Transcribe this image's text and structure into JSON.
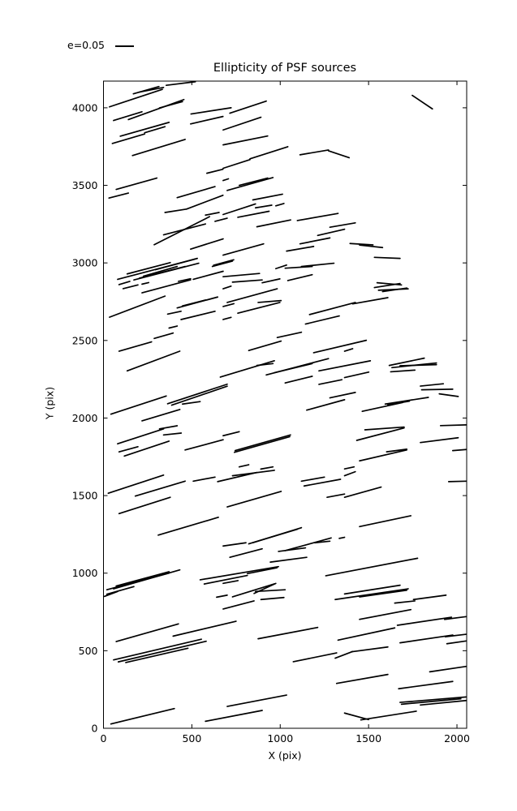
{
  "title": "Ellipticity of PSF sources",
  "legend": {
    "label": "e=0.05"
  },
  "axes": {
    "xlabel": "X (pix)",
    "ylabel": "Y (pix)"
  },
  "colors": {
    "line": "#000000",
    "frame": "#000000",
    "background": "#ffffff"
  },
  "chart_data": {
    "type": "scatter",
    "subtype": "ellipticity-whisker-segments",
    "title": "Ellipticity of PSF sources",
    "xlabel": "X (pix)",
    "ylabel": "Y (pix)",
    "xlim": [
      0,
      2055
    ],
    "ylim": [
      0,
      4172
    ],
    "xticks": [
      0,
      500,
      1000,
      1500,
      2000
    ],
    "yticks": [
      0,
      500,
      1000,
      1500,
      2000,
      2500,
      3000,
      3500,
      4000
    ],
    "grid": false,
    "legend": {
      "label": "e=0.05",
      "position": "above-axes-upper-left",
      "scale_units_per_e005": 100
    },
    "line_width": 1.7,
    "segments": [
      [
        34,
        4006,
        333,
        4119
      ],
      [
        169,
        4090,
        314,
        4137
      ],
      [
        203,
        4101,
        340,
        4131
      ],
      [
        355,
        4145,
        520,
        4168
      ],
      [
        57,
        3918,
        218,
        3974
      ],
      [
        141,
        3924,
        455,
        4053
      ],
      [
        95,
        3817,
        371,
        3906
      ],
      [
        233,
        3839,
        348,
        3878
      ],
      [
        317,
        3999,
        447,
        4040
      ],
      [
        495,
        3960,
        722,
        4000
      ],
      [
        50,
        3770,
        233,
        3831
      ],
      [
        164,
        3692,
        462,
        3796
      ],
      [
        493,
        3896,
        676,
        3944
      ],
      [
        72,
        3474,
        302,
        3547
      ],
      [
        31,
        3418,
        141,
        3450
      ],
      [
        417,
        3421,
        631,
        3492
      ],
      [
        470,
        3347,
        676,
        3436
      ],
      [
        585,
        3578,
        676,
        3604
      ],
      [
        715,
        3965,
        921,
        4043
      ],
      [
        677,
        3857,
        891,
        3939
      ],
      [
        677,
        3761,
        929,
        3818
      ],
      [
        677,
        3610,
        829,
        3666
      ],
      [
        829,
        3671,
        1043,
        3749
      ],
      [
        1112,
        3697,
        1273,
        3728
      ],
      [
        1273,
        3723,
        1390,
        3678
      ],
      [
        677,
        3531,
        707,
        3542
      ],
      [
        700,
        3467,
        959,
        3550
      ],
      [
        768,
        3500,
        929,
        3547
      ],
      [
        845,
        3406,
        1013,
        3443
      ],
      [
        677,
        3312,
        860,
        3380
      ],
      [
        860,
        3355,
        952,
        3372
      ],
      [
        975,
        3368,
        1021,
        3383
      ],
      [
        1747,
        4080,
        1861,
        3993
      ],
      [
        348,
        3325,
        470,
        3347
      ],
      [
        287,
        3117,
        600,
        3298
      ],
      [
        340,
        3181,
        577,
        3251
      ],
      [
        577,
        3308,
        654,
        3325
      ],
      [
        631,
        3268,
        700,
        3288
      ],
      [
        493,
        3089,
        677,
        3155
      ],
      [
        80,
        2894,
        516,
        3024
      ],
      [
        172,
        2890,
        539,
        2998
      ],
      [
        226,
        2914,
        417,
        2977
      ],
      [
        203,
        2902,
        462,
        2977
      ],
      [
        134,
        2929,
        378,
        3002
      ],
      [
        294,
        2956,
        531,
        3029
      ],
      [
        616,
        2977,
        730,
        3012
      ],
      [
        623,
        2985,
        737,
        3020
      ],
      [
        88,
        2860,
        149,
        2881
      ],
      [
        218,
        2863,
        256,
        2873
      ],
      [
        111,
        2834,
        195,
        2858
      ],
      [
        424,
        2881,
        493,
        2898
      ],
      [
        218,
        2807,
        493,
        2891
      ],
      [
        508,
        2894,
        677,
        2946
      ],
      [
        34,
        2650,
        348,
        2786
      ],
      [
        417,
        2710,
        646,
        2780
      ],
      [
        447,
        2723,
        577,
        2761
      ],
      [
        363,
        2670,
        439,
        2688
      ],
      [
        439,
        2635,
        631,
        2688
      ],
      [
        371,
        2580,
        417,
        2593
      ],
      [
        287,
        2513,
        394,
        2548
      ],
      [
        760,
        3294,
        937,
        3333
      ],
      [
        868,
        3233,
        1059,
        3277
      ],
      [
        1097,
        3273,
        1327,
        3319
      ],
      [
        1281,
        3230,
        1425,
        3258
      ],
      [
        1212,
        3177,
        1364,
        3217
      ],
      [
        1112,
        3123,
        1281,
        3161
      ],
      [
        1036,
        3076,
        1189,
        3106
      ],
      [
        677,
        3050,
        906,
        3123
      ],
      [
        975,
        2963,
        1036,
        2986
      ],
      [
        1028,
        2966,
        1181,
        2977
      ],
      [
        1120,
        2977,
        1304,
        2998
      ],
      [
        677,
        2911,
        883,
        2932
      ],
      [
        730,
        2876,
        898,
        2890
      ],
      [
        898,
        2872,
        998,
        2897
      ],
      [
        1043,
        2886,
        1181,
        2924
      ],
      [
        677,
        2833,
        722,
        2850
      ],
      [
        700,
        2745,
        983,
        2833
      ],
      [
        677,
        2719,
        738,
        2737
      ],
      [
        875,
        2745,
        1005,
        2757
      ],
      [
        760,
        2676,
        998,
        2745
      ],
      [
        1166,
        2667,
        1425,
        2745
      ],
      [
        1143,
        2606,
        1334,
        2658
      ],
      [
        983,
        2519,
        1120,
        2553
      ],
      [
        677,
        2635,
        722,
        2649
      ],
      [
        1395,
        3125,
        1525,
        3116
      ],
      [
        1449,
        3115,
        1579,
        3099
      ],
      [
        1533,
        3036,
        1678,
        3029
      ],
      [
        1548,
        2872,
        1686,
        2858
      ],
      [
        1533,
        2841,
        1678,
        2867
      ],
      [
        1556,
        2824,
        1724,
        2833
      ],
      [
        1579,
        2815,
        1716,
        2838
      ],
      [
        1410,
        2736,
        1609,
        2776
      ],
      [
        88,
        2431,
        272,
        2491
      ],
      [
        134,
        2304,
        432,
        2431
      ],
      [
        42,
        2025,
        355,
        2142
      ],
      [
        363,
        2092,
        700,
        2218
      ],
      [
        386,
        2083,
        700,
        2205
      ],
      [
        447,
        2090,
        547,
        2106
      ],
      [
        218,
        1982,
        432,
        2055
      ],
      [
        317,
        1930,
        417,
        1950
      ],
      [
        80,
        1834,
        340,
        1930
      ],
      [
        88,
        1782,
        195,
        1815
      ],
      [
        340,
        1891,
        440,
        1903
      ],
      [
        118,
        1755,
        371,
        1851
      ],
      [
        462,
        1794,
        677,
        1860
      ],
      [
        822,
        2435,
        1005,
        2496
      ],
      [
        661,
        2264,
        967,
        2369
      ],
      [
        868,
        2339,
        959,
        2351
      ],
      [
        921,
        2278,
        1273,
        2383
      ],
      [
        967,
        2292,
        1181,
        2351
      ],
      [
        1189,
        2421,
        1487,
        2501
      ],
      [
        1219,
        2304,
        1510,
        2369
      ],
      [
        1028,
        2226,
        1181,
        2269
      ],
      [
        1219,
        2217,
        1349,
        2247
      ],
      [
        1281,
        2130,
        1425,
        2165
      ],
      [
        1150,
        2051,
        1364,
        2118
      ],
      [
        677,
        1886,
        768,
        1912
      ],
      [
        745,
        1790,
        1058,
        1891
      ],
      [
        741,
        1779,
        1054,
        1880
      ],
      [
        768,
        1685,
        822,
        1699
      ],
      [
        890,
        1671,
        959,
        1685
      ],
      [
        1364,
        2431,
        1410,
        2447
      ],
      [
        1364,
        2261,
        1501,
        2296
      ],
      [
        1617,
        2339,
        1815,
        2386
      ],
      [
        1632,
        2325,
        1884,
        2355
      ],
      [
        1678,
        2337,
        1884,
        2344
      ],
      [
        1625,
        2298,
        1762,
        2309
      ],
      [
        1793,
        2206,
        1923,
        2221
      ],
      [
        1800,
        2182,
        1976,
        2186
      ],
      [
        1900,
        2156,
        2007,
        2139
      ],
      [
        1594,
        2090,
        1838,
        2133
      ],
      [
        1609,
        2086,
        1731,
        2109
      ],
      [
        1464,
        2043,
        1693,
        2100
      ],
      [
        1479,
        1924,
        1701,
        1942
      ],
      [
        1907,
        1951,
        2053,
        1956
      ],
      [
        1433,
        1856,
        1701,
        1936
      ],
      [
        1793,
        1842,
        2007,
        1873
      ],
      [
        1602,
        1782,
        1716,
        1799
      ],
      [
        1449,
        1724,
        1716,
        1794
      ],
      [
        1976,
        1790,
        2053,
        1797
      ],
      [
        1364,
        1672,
        1418,
        1685
      ],
      [
        27,
        1515,
        340,
        1632
      ],
      [
        180,
        1497,
        462,
        1593
      ],
      [
        508,
        1593,
        631,
        1619
      ],
      [
        88,
        1384,
        378,
        1489
      ],
      [
        310,
        1245,
        650,
        1360
      ],
      [
        19,
        893,
        371,
        1000
      ],
      [
        57,
        899,
        432,
        1021
      ],
      [
        72,
        917,
        371,
        1009
      ],
      [
        19,
        864,
        172,
        913
      ],
      [
        5,
        850,
        80,
        882
      ],
      [
        640,
        845,
        700,
        858
      ],
      [
        646,
        1590,
        868,
        1649
      ],
      [
        730,
        1628,
        967,
        1663
      ],
      [
        1120,
        1593,
        1250,
        1619
      ],
      [
        1135,
        1562,
        1341,
        1605
      ],
      [
        700,
        1427,
        1005,
        1527
      ],
      [
        1265,
        1489,
        1364,
        1510
      ],
      [
        822,
        1189,
        1097,
        1283
      ],
      [
        845,
        1196,
        1120,
        1293
      ],
      [
        677,
        1175,
        806,
        1196
      ],
      [
        715,
        1102,
        898,
        1157
      ],
      [
        990,
        1140,
        1143,
        1163
      ],
      [
        1028,
        1145,
        1288,
        1227
      ],
      [
        1196,
        1196,
        1281,
        1206
      ],
      [
        944,
        1071,
        1150,
        1102
      ],
      [
        547,
        957,
        990,
        1042
      ],
      [
        570,
        930,
        814,
        985
      ],
      [
        814,
        997,
        982,
        1035
      ],
      [
        677,
        934,
        761,
        952
      ],
      [
        852,
        869,
        975,
        934
      ],
      [
        730,
        847,
        967,
        931
      ],
      [
        860,
        882,
        1028,
        893
      ],
      [
        1334,
        1224,
        1364,
        1231
      ],
      [
        1258,
        983,
        1777,
        1096
      ],
      [
        1311,
        830,
        1724,
        899
      ],
      [
        891,
        830,
        1021,
        843
      ],
      [
        1364,
        1628,
        1425,
        1654
      ],
      [
        1953,
        1590,
        2053,
        1593
      ],
      [
        1364,
        1489,
        1571,
        1555
      ],
      [
        1449,
        1300,
        1739,
        1370
      ],
      [
        1364,
        866,
        1678,
        922
      ],
      [
        1449,
        847,
        1716,
        890
      ],
      [
        1754,
        830,
        1938,
        858
      ],
      [
        72,
        559,
        424,
        673
      ],
      [
        394,
        594,
        750,
        690
      ],
      [
        57,
        441,
        554,
        574
      ],
      [
        84,
        428,
        581,
        561
      ],
      [
        126,
        424,
        478,
        516
      ],
      [
        42,
        28,
        401,
        127
      ],
      [
        577,
        45,
        898,
        115
      ],
      [
        677,
        769,
        852,
        821
      ],
      [
        875,
        577,
        1212,
        650
      ],
      [
        1327,
        568,
        1648,
        647
      ],
      [
        1074,
        429,
        1319,
        486
      ],
      [
        1311,
        452,
        1410,
        495
      ],
      [
        1319,
        289,
        1609,
        347
      ],
      [
        700,
        141,
        1036,
        214
      ],
      [
        1364,
        98,
        1500,
        56
      ],
      [
        1648,
        807,
        1762,
        821
      ],
      [
        1449,
        702,
        1739,
        765
      ],
      [
        1663,
        664,
        1969,
        716
      ],
      [
        1930,
        702,
        2053,
        720
      ],
      [
        1678,
        551,
        1976,
        601
      ],
      [
        1934,
        590,
        2053,
        606
      ],
      [
        1403,
        493,
        1609,
        524
      ],
      [
        1943,
        545,
        2053,
        563
      ],
      [
        1846,
        364,
        2053,
        399
      ],
      [
        1670,
        255,
        1976,
        302
      ],
      [
        1678,
        167,
        2053,
        202
      ],
      [
        1686,
        155,
        2022,
        190
      ],
      [
        1793,
        150,
        2053,
        179
      ],
      [
        1456,
        54,
        1770,
        110
      ]
    ]
  }
}
